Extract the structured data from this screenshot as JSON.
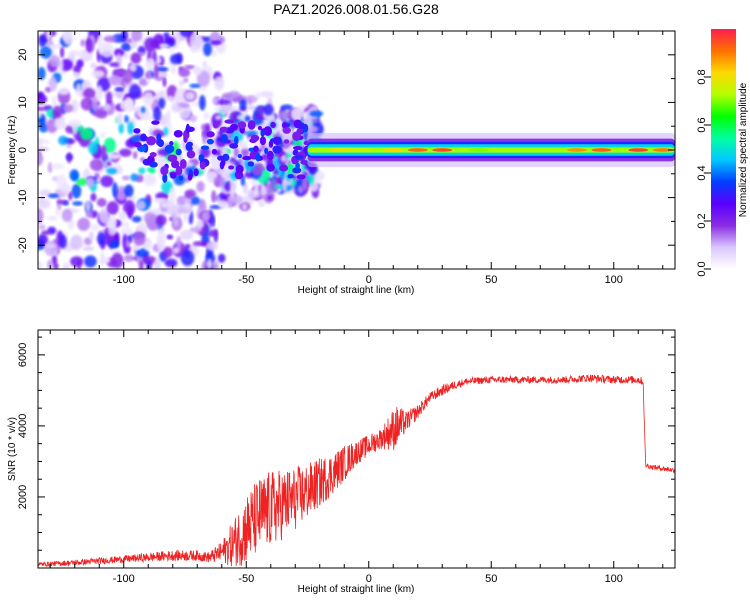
{
  "title": "PAZ1.2026.008.01.56.G28",
  "colors": {
    "snr_line": "#ee2222",
    "spec_background": "#ffffff"
  },
  "chart_data": [
    {
      "type": "heatmap",
      "name": "spectrogram",
      "xlabel": "Height of straight line (km)",
      "ylabel": "Frequency (Hz)",
      "xlim": [
        -135,
        125
      ],
      "ylim": [
        -25,
        25
      ],
      "xticks": [
        -100,
        -50,
        0,
        50,
        100
      ],
      "xtick_labels": [
        "-100",
        "-50",
        "0",
        "50",
        "100"
      ],
      "yticks": [
        -20,
        -10,
        0,
        10,
        20
      ],
      "ytick_labels": [
        "-20",
        "-10",
        "0",
        "10",
        "20"
      ],
      "colorbar": {
        "label": "Normalized spectral amplitude",
        "range": [
          0,
          1
        ],
        "ticks": [
          0.0,
          0.2,
          0.4,
          0.6,
          0.8
        ],
        "tick_labels": [
          "0.0",
          "0.2",
          "0.4",
          "0.6",
          "0.8"
        ],
        "stops": [
          "#ffffff",
          "#d9c6ff",
          "#8a2be2",
          "#5a00ff",
          "#0040ff",
          "#00c8ff",
          "#00ffa0",
          "#00ff00",
          "#b4ff00",
          "#ffd800",
          "#ff7000",
          "#ff1e50"
        ]
      },
      "description_regions": [
        {
          "x_range": [
            -135,
            -25
          ],
          "freq_range": [
            -25,
            25
          ],
          "amplitude": "low, scattered"
        },
        {
          "x_range": [
            -25,
            125
          ],
          "freq_center": 0,
          "amplitude": "high, narrow band"
        }
      ]
    },
    {
      "type": "line",
      "name": "snr",
      "xlabel": "Height of straight line (km)",
      "ylabel": "SNR (10 * v/v)",
      "xlim": [
        -135,
        125
      ],
      "ylim": [
        0,
        6700
      ],
      "xticks": [
        -100,
        -50,
        0,
        50,
        100
      ],
      "xtick_labels": [
        "-100",
        "-50",
        "0",
        "50",
        "100"
      ],
      "yticks": [
        2000,
        4000,
        6000
      ],
      "ytick_labels": [
        "2000",
        "4000",
        "6000"
      ],
      "series": [
        {
          "name": "SNR",
          "x": [
            -135,
            -120,
            -100,
            -80,
            -70,
            -65,
            -60,
            -55,
            -50,
            -45,
            -40,
            -35,
            -30,
            -25,
            -20,
            -15,
            -10,
            -5,
            0,
            5,
            10,
            12,
            15,
            20,
            25,
            30,
            35,
            40,
            50,
            60,
            70,
            80,
            90,
            100,
            105,
            110,
            112,
            113,
            115,
            120,
            125
          ],
          "y": [
            100,
            150,
            250,
            350,
            350,
            300,
            450,
            700,
            1100,
            1450,
            1650,
            1800,
            1950,
            2150,
            2400,
            2650,
            2950,
            3250,
            3450,
            3650,
            3900,
            4000,
            4100,
            4400,
            4800,
            5000,
            5150,
            5250,
            5300,
            5300,
            5300,
            5300,
            5350,
            5300,
            5300,
            5300,
            5250,
            2900,
            2850,
            2800,
            2750
          ],
          "noise_amplitude": [
            60,
            80,
            100,
            150,
            150,
            150,
            300,
            700,
            1000,
            1100,
            1100,
            1000,
            900,
            800,
            700,
            600,
            500,
            350,
            300,
            300,
            600,
            600,
            300,
            200,
            150,
            150,
            120,
            100,
            100,
            100,
            100,
            100,
            110,
            110,
            110,
            110,
            110,
            80,
            70,
            70,
            70
          ]
        }
      ]
    }
  ]
}
